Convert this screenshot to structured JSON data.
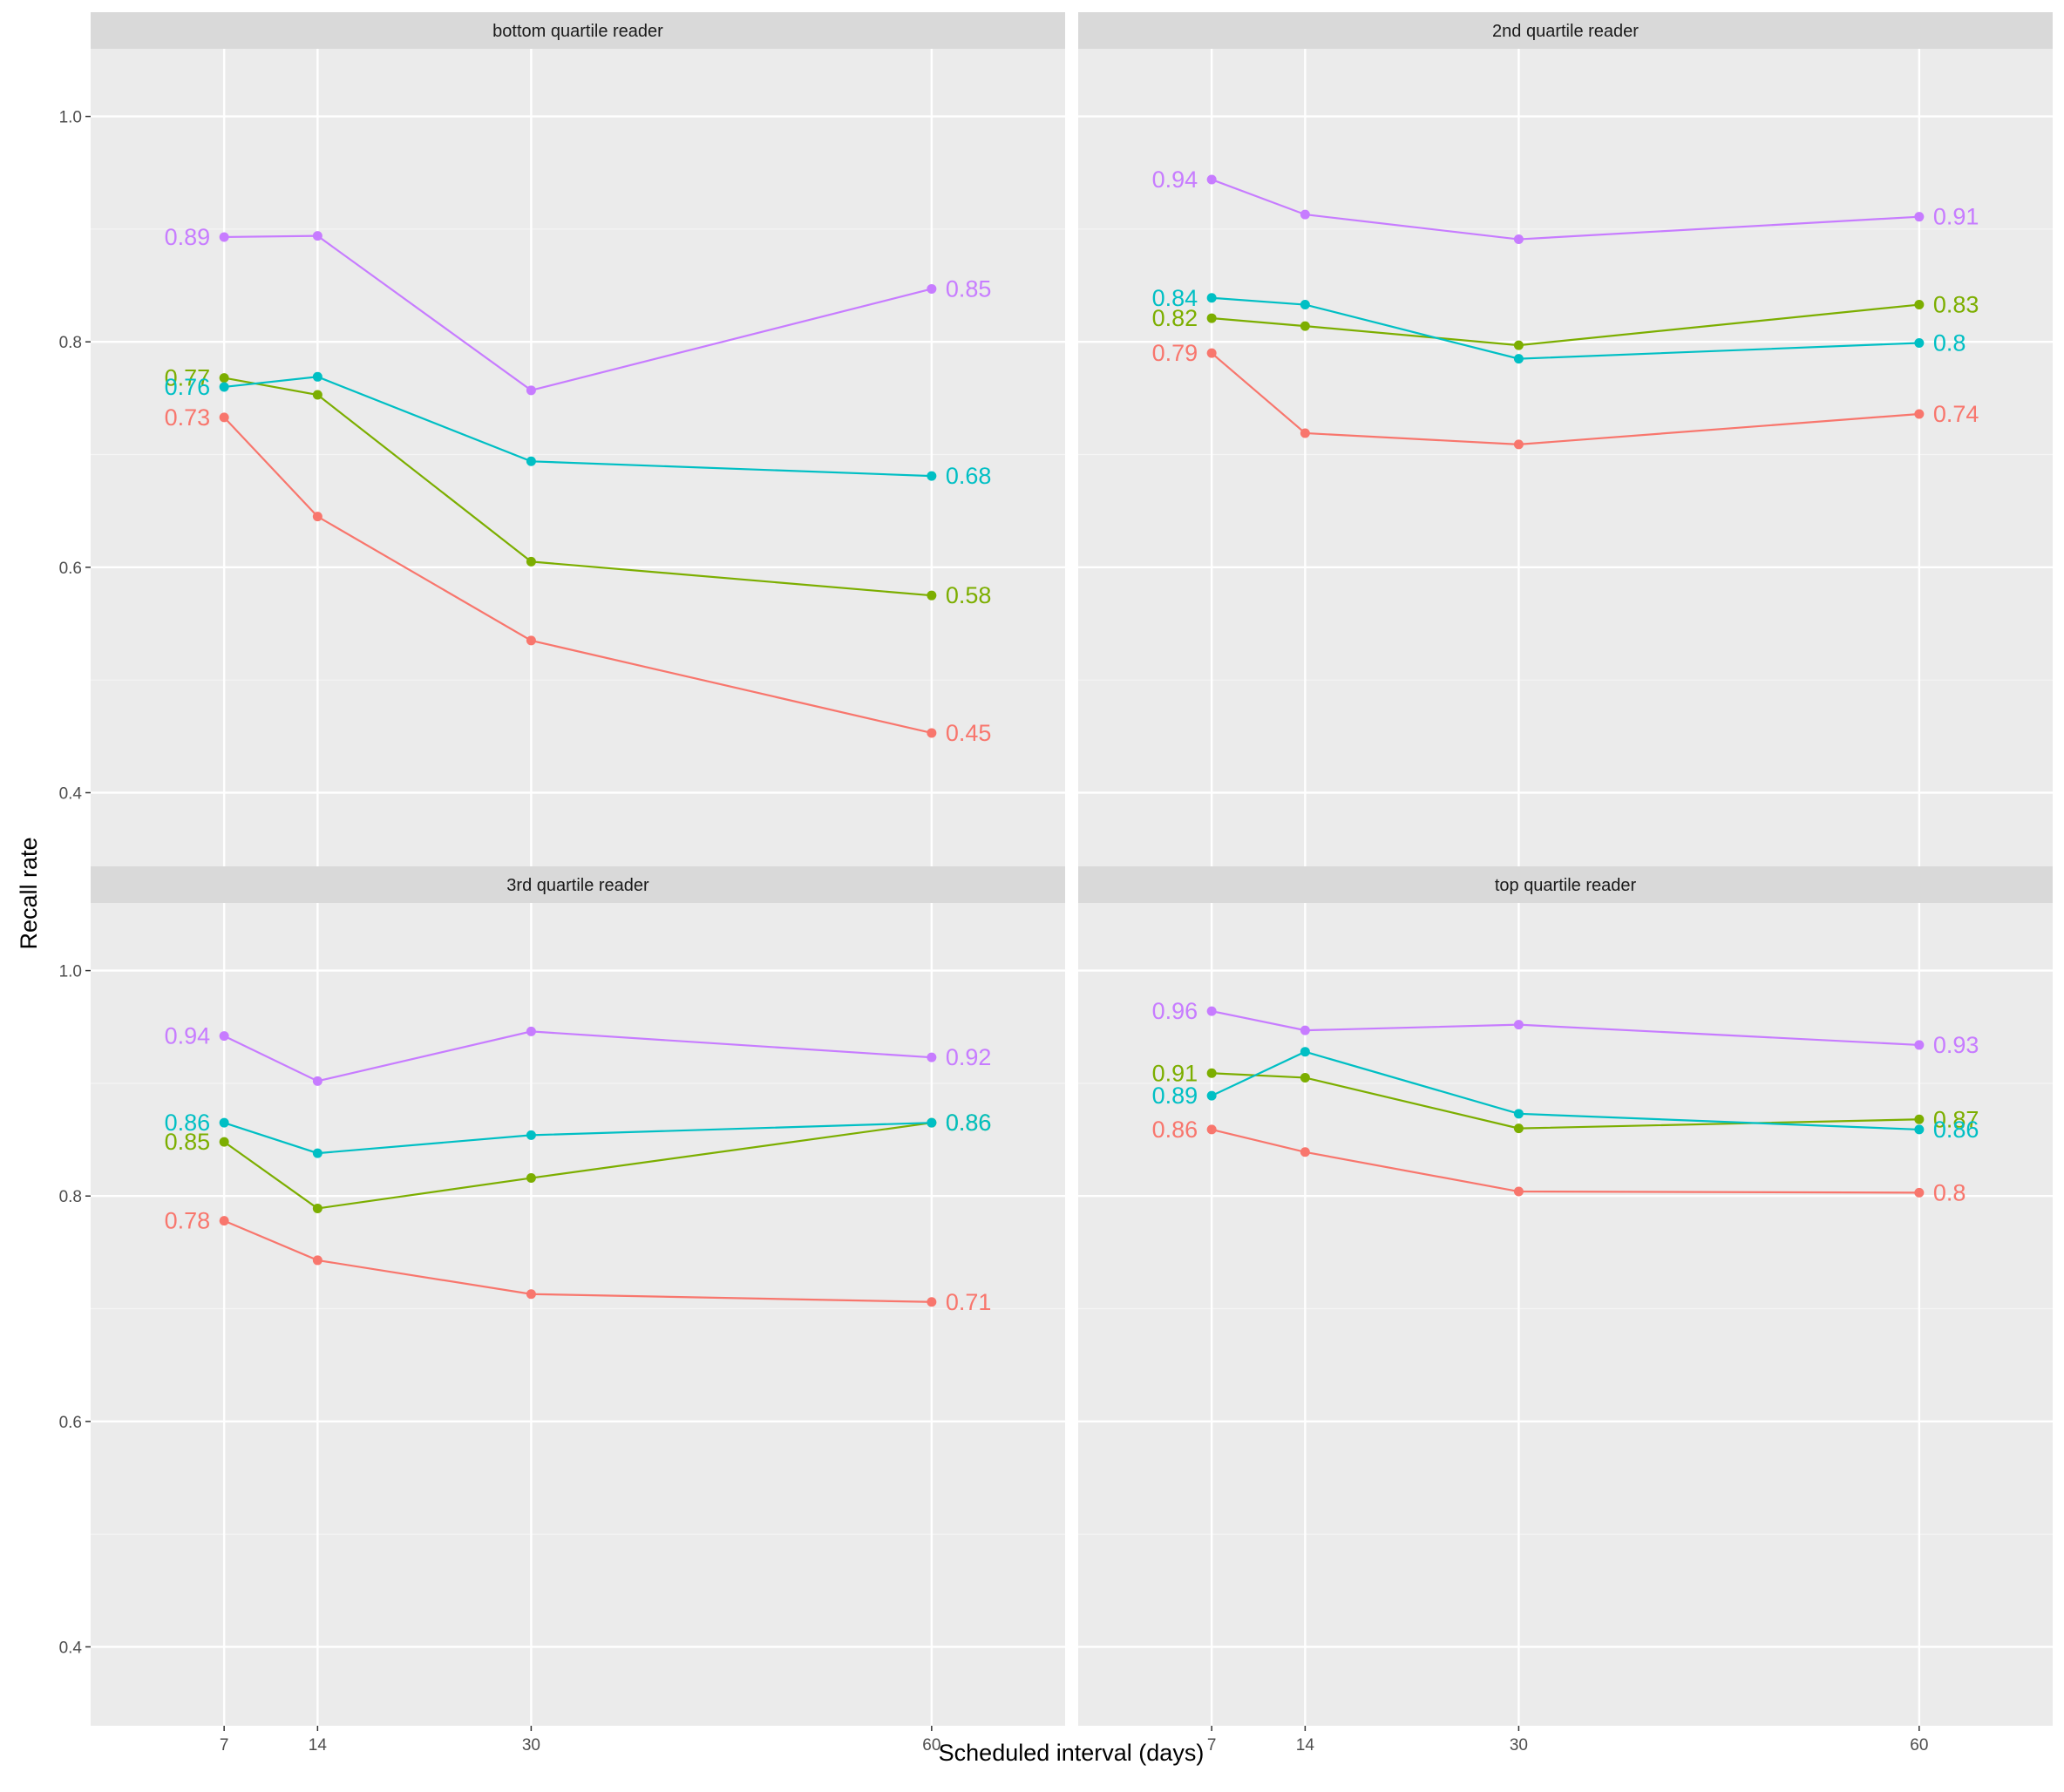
{
  "chart_data": {
    "type": "line",
    "xlabel": "Scheduled interval (days)",
    "ylabel": "Recall rate",
    "x": [
      7,
      14,
      30,
      60
    ],
    "xlim": [
      -3,
      70
    ],
    "ylim": [
      0.33,
      1.06
    ],
    "yticks": [
      0.4,
      0.6,
      0.8,
      1.0
    ],
    "ytick_labels": [
      "0.4",
      "0.6",
      "0.8",
      "1.0"
    ],
    "xtick_labels": [
      "7",
      "14",
      "30",
      "60"
    ],
    "grid": true,
    "legend": "none",
    "colors": [
      "#F8766D",
      "#7CAE00",
      "#00BFC4",
      "#C77CFF"
    ],
    "panels": [
      {
        "title": "bottom quartile reader",
        "series": [
          {
            "values": [
              0.733,
              0.645,
              0.535,
              0.453
            ],
            "color": "#F8766D",
            "start_label": "0.73",
            "end_label": "0.45"
          },
          {
            "values": [
              0.768,
              0.753,
              0.605,
              0.575
            ],
            "color": "#7CAE00",
            "start_label": "0.77",
            "end_label": "0.58"
          },
          {
            "values": [
              0.76,
              0.769,
              0.694,
              0.681
            ],
            "color": "#00BFC4",
            "start_label": "0.76",
            "end_label": "0.68"
          },
          {
            "values": [
              0.893,
              0.894,
              0.757,
              0.847
            ],
            "color": "#C77CFF",
            "start_label": "0.89",
            "end_label": "0.85"
          }
        ]
      },
      {
        "title": "2nd quartile reader",
        "series": [
          {
            "values": [
              0.79,
              0.719,
              0.709,
              0.736
            ],
            "color": "#F8766D",
            "start_label": "0.79",
            "end_label": "0.74"
          },
          {
            "values": [
              0.821,
              0.814,
              0.797,
              0.833
            ],
            "color": "#7CAE00",
            "start_label": "0.82",
            "end_label": "0.83"
          },
          {
            "values": [
              0.839,
              0.833,
              0.785,
              0.799
            ],
            "color": "#00BFC4",
            "start_label": "0.84",
            "end_label": "0.8"
          },
          {
            "values": [
              0.944,
              0.913,
              0.891,
              0.911
            ],
            "color": "#C77CFF",
            "start_label": "0.94",
            "end_label": "0.91"
          }
        ]
      },
      {
        "title": "3rd quartile reader",
        "series": [
          {
            "values": [
              0.778,
              0.743,
              0.713,
              0.706
            ],
            "color": "#F8766D",
            "start_label": "0.78",
            "end_label": "0.71"
          },
          {
            "values": [
              0.848,
              0.789,
              0.816,
              0.865
            ],
            "color": "#7CAE00",
            "start_label": "0.85",
            "end_label": "0.86"
          },
          {
            "values": [
              0.865,
              0.838,
              0.854,
              0.865
            ],
            "color": "#00BFC4",
            "start_label": "0.86",
            "end_label": "0.86"
          },
          {
            "values": [
              0.942,
              0.902,
              0.946,
              0.923
            ],
            "color": "#C77CFF",
            "start_label": "0.94",
            "end_label": "0.92"
          }
        ]
      },
      {
        "title": "top quartile reader",
        "series": [
          {
            "values": [
              0.859,
              0.839,
              0.804,
              0.803
            ],
            "color": "#F8766D",
            "start_label": "0.86",
            "end_label": "0.8"
          },
          {
            "values": [
              0.909,
              0.905,
              0.86,
              0.868
            ],
            "color": "#7CAE00",
            "start_label": "0.91",
            "end_label": "0.87"
          },
          {
            "values": [
              0.889,
              0.928,
              0.873,
              0.859
            ],
            "color": "#00BFC4",
            "start_label": "0.89",
            "end_label": "0.86"
          },
          {
            "values": [
              0.964,
              0.947,
              0.952,
              0.934
            ],
            "color": "#C77CFF",
            "start_label": "0.96",
            "end_label": "0.93"
          }
        ]
      }
    ]
  }
}
